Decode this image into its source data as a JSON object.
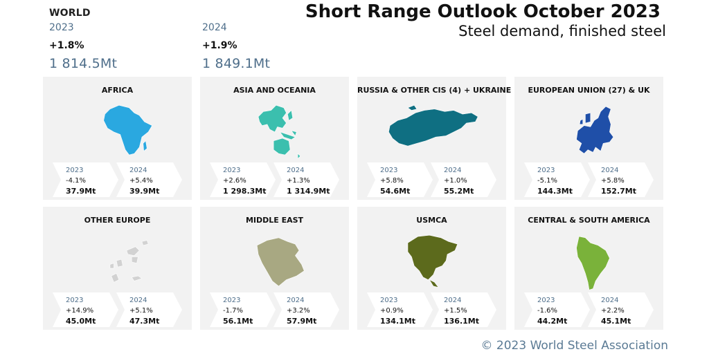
{
  "header": {
    "title": "Short Range Outlook October 2023",
    "subtitle": "Steel demand, finished steel"
  },
  "world": {
    "label": "WORLD",
    "y1": {
      "year": "2023",
      "pct": "+1.8%",
      "value": "1 814.5Mt"
    },
    "y2": {
      "year": "2024",
      "pct": "+1.9%",
      "value": "1 849.1Mt"
    }
  },
  "chart_data": {
    "type": "table",
    "title": "Short Range Outlook October 2023",
    "subtitle": "Steel demand, finished steel",
    "columns": [
      "region",
      "2023 change",
      "2023 Mt",
      "2024 change",
      "2024 Mt"
    ],
    "rows": [
      [
        "WORLD",
        "+1.8%",
        1814.5,
        "+1.9%",
        1849.1
      ],
      [
        "AFRICA",
        "-4.1%",
        37.9,
        "+5.4%",
        39.9
      ],
      [
        "ASIA AND OCEANIA",
        "+2.6%",
        1298.3,
        "+1.3%",
        1314.9
      ],
      [
        "RUSSIA & OTHER CIS (4) + UKRAINE",
        "+5.8%",
        54.6,
        "+1.0%",
        55.2
      ],
      [
        "EUROPEAN UNION (27) & UK",
        "-5.1%",
        144.3,
        "+5.8%",
        152.7
      ],
      [
        "OTHER EUROPE",
        "+14.9%",
        45.0,
        "+5.1%",
        47.3
      ],
      [
        "MIDDLE EAST",
        "-1.7%",
        56.1,
        "+3.2%",
        57.9
      ],
      [
        "USMCA",
        "+0.9%",
        134.1,
        "+1.5%",
        136.1
      ],
      [
        "CENTRAL & SOUTH AMERICA",
        "-1.6%",
        44.2,
        "+2.2%",
        45.1
      ]
    ]
  },
  "regions": [
    {
      "name": "AFRICA",
      "color": "#2aa8e0",
      "map_icon": "africa-map-icon",
      "y1": {
        "year": "2023",
        "pct": "-4.1%",
        "value": "37.9Mt"
      },
      "y2": {
        "year": "2024",
        "pct": "+5.4%",
        "value": "39.9Mt"
      }
    },
    {
      "name": "ASIA AND OCEANIA",
      "color": "#3bbfae",
      "map_icon": "asia-oceania-map-icon",
      "y1": {
        "year": "2023",
        "pct": "+2.6%",
        "value": "1 298.3Mt"
      },
      "y2": {
        "year": "2024",
        "pct": "+1.3%",
        "value": "1 314.9Mt"
      }
    },
    {
      "name": "RUSSIA & OTHER CIS (4) + UKRAINE",
      "color": "#0f6f82",
      "map_icon": "russia-cis-map-icon",
      "y1": {
        "year": "2023",
        "pct": "+5.8%",
        "value": "54.6Mt"
      },
      "y2": {
        "year": "2024",
        "pct": "+1.0%",
        "value": "55.2Mt"
      }
    },
    {
      "name": "EUROPEAN UNION (27) & UK",
      "color": "#1f4fa8",
      "map_icon": "eu-uk-map-icon",
      "y1": {
        "year": "2023",
        "pct": "-5.1%",
        "value": "144.3Mt"
      },
      "y2": {
        "year": "2024",
        "pct": "+5.8%",
        "value": "152.7Mt"
      }
    },
    {
      "name": "OTHER EUROPE",
      "color": "#d2d2d2",
      "map_icon": "other-europe-map-icon",
      "y1": {
        "year": "2023",
        "pct": "+14.9%",
        "value": "45.0Mt"
      },
      "y2": {
        "year": "2024",
        "pct": "+5.1%",
        "value": "47.3Mt"
      }
    },
    {
      "name": "MIDDLE EAST",
      "color": "#a8a882",
      "map_icon": "middle-east-map-icon",
      "y1": {
        "year": "2023",
        "pct": "-1.7%",
        "value": "56.1Mt"
      },
      "y2": {
        "year": "2024",
        "pct": "+3.2%",
        "value": "57.9Mt"
      }
    },
    {
      "name": "USMCA",
      "color": "#5c6a1c",
      "map_icon": "usmca-map-icon",
      "y1": {
        "year": "2023",
        "pct": "+0.9%",
        "value": "134.1Mt"
      },
      "y2": {
        "year": "2024",
        "pct": "+1.5%",
        "value": "136.1Mt"
      }
    },
    {
      "name": "CENTRAL & SOUTH AMERICA",
      "color": "#7ab23a",
      "map_icon": "central-south-america-map-icon",
      "y1": {
        "year": "2023",
        "pct": "-1.6%",
        "value": "44.2Mt"
      },
      "y2": {
        "year": "2024",
        "pct": "+2.2%",
        "value": "45.1Mt"
      }
    }
  ],
  "footer": {
    "credit": "© 2023 World Steel Association"
  }
}
